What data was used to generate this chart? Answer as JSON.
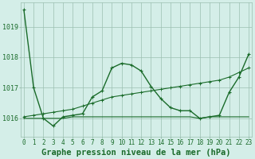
{
  "title": "Graphe pression niveau de la mer (hPa)",
  "bg_color": "#d4eee8",
  "grid_color": "#9bbfb0",
  "line_color": "#1a6b2a",
  "x_ticks": [
    0,
    1,
    2,
    3,
    4,
    5,
    6,
    7,
    8,
    9,
    10,
    11,
    12,
    13,
    14,
    15,
    16,
    17,
    18,
    19,
    20,
    21,
    22,
    23
  ],
  "ylim": [
    1015.4,
    1019.8
  ],
  "yticks": [
    1016,
    1017,
    1018,
    1019
  ],
  "line1": [
    1019.55,
    1017.0,
    1016.0,
    1015.75,
    1016.05,
    1016.1,
    1016.15,
    1016.7,
    1016.9,
    1017.65,
    1017.8,
    1017.75,
    1017.55,
    1017.05,
    1016.65,
    1016.35,
    1016.25,
    1016.25,
    1016.0,
    1016.05,
    1016.1,
    1016.85,
    1017.35,
    1018.1
  ],
  "line2": [
    1016.05,
    1016.1,
    1016.15,
    1016.2,
    1016.25,
    1016.3,
    1016.4,
    1016.5,
    1016.6,
    1016.7,
    1016.75,
    1016.8,
    1016.85,
    1016.9,
    1016.95,
    1017.0,
    1017.05,
    1017.1,
    1017.15,
    1017.2,
    1017.25,
    1017.35,
    1017.5,
    1017.65
  ],
  "line3": [
    1016.0,
    1016.0,
    1016.0,
    1016.0,
    1016.0,
    1016.05,
    1016.05,
    1016.05,
    1016.05,
    1016.05,
    1016.05,
    1016.05,
    1016.05,
    1016.05,
    1016.05,
    1016.05,
    1016.05,
    1016.05,
    1016.0,
    1016.05,
    1016.05,
    1016.05,
    1016.05,
    1016.05
  ],
  "title_fontsize": 7.5,
  "tick_fontsize": 5.5,
  "figsize": [
    3.2,
    2.0
  ],
  "dpi": 100
}
